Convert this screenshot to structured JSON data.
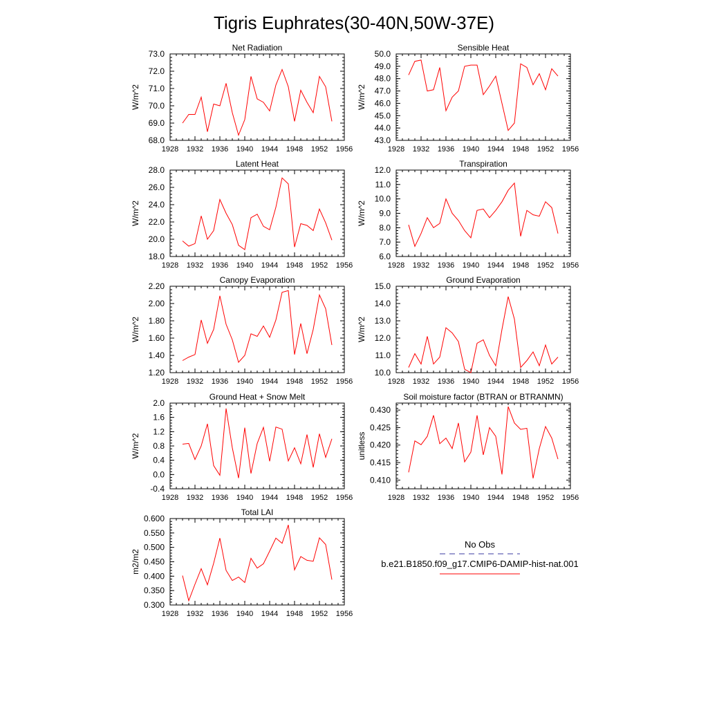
{
  "title": "Tigris Euphrates(30-40N,50W-37E)",
  "colors": {
    "series": "#ff0000",
    "obs": "#3a3aa0",
    "axis": "#000000"
  },
  "legend": {
    "obs_label": "No Obs",
    "model_label": "b.e21.B1850.f09_g17.CMIP6-DAMIP-hist-nat.001"
  },
  "chart_data": [
    {
      "type": "line",
      "title": "Net Radiation",
      "ylabel": "W/m^2",
      "xlim": [
        1928,
        1956
      ],
      "xticks": [
        1928,
        1932,
        1936,
        1940,
        1944,
        1948,
        1952,
        1956
      ],
      "ylim": [
        68.0,
        73.0
      ],
      "yticks": [
        68,
        69,
        70,
        71,
        72,
        73
      ],
      "ydecimals": 1,
      "x": [
        1930,
        1931,
        1932,
        1933,
        1934,
        1935,
        1936,
        1937,
        1938,
        1939,
        1940,
        1941,
        1942,
        1943,
        1944,
        1945,
        1946,
        1947,
        1948,
        1949,
        1950,
        1951,
        1952,
        1953,
        1954
      ],
      "series": [
        {
          "name": "b.e21.B1850.f09_g17.CMIP6-DAMIP-hist-nat.001",
          "values": [
            69.0,
            69.5,
            69.5,
            70.5,
            68.5,
            70.1,
            70.0,
            71.3,
            69.6,
            68.3,
            69.2,
            71.7,
            70.4,
            70.2,
            69.7,
            71.2,
            72.1,
            71.1,
            69.1,
            70.9,
            70.2,
            69.6,
            71.7,
            71.1,
            69.1
          ]
        }
      ]
    },
    {
      "type": "line",
      "title": "Sensible Heat",
      "ylabel": "W/m^2",
      "xlim": [
        1928,
        1956
      ],
      "xticks": [
        1928,
        1932,
        1936,
        1940,
        1944,
        1948,
        1952,
        1956
      ],
      "ylim": [
        43.0,
        50.0
      ],
      "yticks": [
        43,
        44,
        45,
        46,
        47,
        48,
        49,
        50
      ],
      "ydecimals": 1,
      "x": [
        1930,
        1931,
        1932,
        1933,
        1934,
        1935,
        1936,
        1937,
        1938,
        1939,
        1940,
        1941,
        1942,
        1943,
        1944,
        1945,
        1946,
        1947,
        1948,
        1949,
        1950,
        1951,
        1952,
        1953,
        1954
      ],
      "series": [
        {
          "name": "b.e21.B1850.f09_g17.CMIP6-DAMIP-hist-nat.001",
          "values": [
            48.3,
            49.4,
            49.5,
            47.0,
            47.1,
            48.9,
            45.4,
            46.5,
            47.0,
            49.0,
            49.1,
            49.1,
            46.7,
            47.4,
            48.2,
            46.0,
            43.8,
            44.4,
            49.2,
            48.9,
            47.5,
            48.4,
            47.1,
            48.8,
            48.2
          ]
        }
      ]
    },
    {
      "type": "line",
      "title": "Latent Heat",
      "ylabel": "W/m^2",
      "xlim": [
        1928,
        1956
      ],
      "xticks": [
        1928,
        1932,
        1936,
        1940,
        1944,
        1948,
        1952,
        1956
      ],
      "ylim": [
        18.0,
        28.0
      ],
      "yticks": [
        18,
        20,
        22,
        24,
        26,
        28
      ],
      "ydecimals": 1,
      "x": [
        1930,
        1931,
        1932,
        1933,
        1934,
        1935,
        1936,
        1937,
        1938,
        1939,
        1940,
        1941,
        1942,
        1943,
        1944,
        1945,
        1946,
        1947,
        1948,
        1949,
        1950,
        1951,
        1952,
        1953,
        1954
      ],
      "series": [
        {
          "name": "b.e21.B1850.f09_g17.CMIP6-DAMIP-hist-nat.001",
          "values": [
            19.8,
            19.2,
            19.5,
            22.7,
            20.0,
            21.0,
            24.6,
            23.0,
            21.7,
            19.3,
            18.8,
            22.5,
            22.9,
            21.5,
            21.1,
            23.7,
            27.1,
            26.4,
            19.1,
            21.8,
            21.6,
            21.0,
            23.5,
            21.9,
            19.9
          ]
        }
      ]
    },
    {
      "type": "line",
      "title": "Transpiration",
      "ylabel": "W/m^2",
      "xlim": [
        1928,
        1956
      ],
      "xticks": [
        1928,
        1932,
        1936,
        1940,
        1944,
        1948,
        1952,
        1956
      ],
      "ylim": [
        6.0,
        12.0
      ],
      "yticks": [
        6,
        7,
        8,
        9,
        10,
        11,
        12
      ],
      "ydecimals": 1,
      "x": [
        1930,
        1931,
        1932,
        1933,
        1934,
        1935,
        1936,
        1937,
        1938,
        1939,
        1940,
        1941,
        1942,
        1943,
        1944,
        1945,
        1946,
        1947,
        1948,
        1949,
        1950,
        1951,
        1952,
        1953,
        1954
      ],
      "series": [
        {
          "name": "b.e21.B1850.f09_g17.CMIP6-DAMIP-hist-nat.001",
          "values": [
            8.2,
            6.7,
            7.6,
            8.7,
            8.0,
            8.3,
            10.0,
            9.0,
            8.5,
            7.8,
            7.3,
            9.2,
            9.3,
            8.7,
            9.2,
            9.8,
            10.6,
            11.1,
            7.4,
            9.2,
            8.9,
            8.8,
            9.8,
            9.4,
            7.6
          ]
        }
      ]
    },
    {
      "type": "line",
      "title": "Canopy Evaporation",
      "ylabel": "W/m^2",
      "xlim": [
        1928,
        1956
      ],
      "xticks": [
        1928,
        1932,
        1936,
        1940,
        1944,
        1948,
        1952,
        1956
      ],
      "ylim": [
        1.2,
        2.2
      ],
      "yticks": [
        1.2,
        1.4,
        1.6,
        1.8,
        2.0,
        2.2
      ],
      "ydecimals": 2,
      "x": [
        1930,
        1931,
        1932,
        1933,
        1934,
        1935,
        1936,
        1937,
        1938,
        1939,
        1940,
        1941,
        1942,
        1943,
        1944,
        1945,
        1946,
        1947,
        1948,
        1949,
        1950,
        1951,
        1952,
        1953,
        1954
      ],
      "series": [
        {
          "name": "b.e21.B1850.f09_g17.CMIP6-DAMIP-hist-nat.001",
          "values": [
            1.34,
            1.38,
            1.41,
            1.81,
            1.54,
            1.7,
            2.09,
            1.76,
            1.58,
            1.32,
            1.4,
            1.65,
            1.62,
            1.74,
            1.61,
            1.81,
            2.13,
            2.15,
            1.41,
            1.77,
            1.42,
            1.7,
            2.1,
            1.94,
            1.52
          ]
        }
      ]
    },
    {
      "type": "line",
      "title": "Ground Evaporation",
      "ylabel": "W/m^2",
      "xlim": [
        1928,
        1956
      ],
      "xticks": [
        1928,
        1932,
        1936,
        1940,
        1944,
        1948,
        1952,
        1956
      ],
      "ylim": [
        10.0,
        15.0
      ],
      "yticks": [
        10,
        11,
        12,
        13,
        14,
        15
      ],
      "ydecimals": 1,
      "x": [
        1930,
        1931,
        1932,
        1933,
        1934,
        1935,
        1936,
        1937,
        1938,
        1939,
        1940,
        1941,
        1942,
        1943,
        1944,
        1945,
        1946,
        1947,
        1948,
        1949,
        1950,
        1951,
        1952,
        1953,
        1954
      ],
      "series": [
        {
          "name": "b.e21.B1850.f09_g17.CMIP6-DAMIP-hist-nat.001",
          "values": [
            10.3,
            11.1,
            10.5,
            12.1,
            10.5,
            10.9,
            12.6,
            12.3,
            11.8,
            10.2,
            10.0,
            11.7,
            11.9,
            11.0,
            10.4,
            12.5,
            14.4,
            13.1,
            10.3,
            10.7,
            11.2,
            10.4,
            11.6,
            10.5,
            10.9
          ]
        }
      ]
    },
    {
      "type": "line",
      "title": "Ground Heat + Snow Melt",
      "ylabel": "W/m^2",
      "xlim": [
        1928,
        1956
      ],
      "xticks": [
        1928,
        1932,
        1936,
        1940,
        1944,
        1948,
        1952,
        1956
      ],
      "ylim": [
        -0.4,
        2.0
      ],
      "yticks": [
        -0.4,
        0.0,
        0.4,
        0.8,
        1.2,
        1.6,
        2.0
      ],
      "ydecimals": 1,
      "x": [
        1930,
        1931,
        1932,
        1933,
        1934,
        1935,
        1936,
        1937,
        1938,
        1939,
        1940,
        1941,
        1942,
        1943,
        1944,
        1945,
        1946,
        1947,
        1948,
        1949,
        1950,
        1951,
        1952,
        1953,
        1954
      ],
      "series": [
        {
          "name": "b.e21.B1850.f09_g17.CMIP6-DAMIP-hist-nat.001",
          "values": [
            0.85,
            0.87,
            0.42,
            0.8,
            1.42,
            0.25,
            -0.02,
            1.85,
            0.75,
            -0.1,
            1.31,
            0.03,
            0.87,
            1.32,
            0.37,
            1.33,
            1.27,
            0.38,
            0.75,
            0.3,
            1.12,
            0.2,
            1.14,
            0.48,
            1.0
          ]
        }
      ]
    },
    {
      "type": "line",
      "title": "Soil moisture factor (BTRAN or BTRANMN)",
      "ylabel": "unitless",
      "xlim": [
        1928,
        1956
      ],
      "xticks": [
        1928,
        1932,
        1936,
        1940,
        1944,
        1948,
        1952,
        1956
      ],
      "ylim": [
        0.4075,
        0.432
      ],
      "yticks": [
        0.41,
        0.415,
        0.42,
        0.425,
        0.43
      ],
      "ydecimals": 3,
      "x": [
        1930,
        1931,
        1932,
        1933,
        1934,
        1935,
        1936,
        1937,
        1938,
        1939,
        1940,
        1941,
        1942,
        1943,
        1944,
        1945,
        1946,
        1947,
        1948,
        1949,
        1950,
        1951,
        1952,
        1953,
        1954
      ],
      "series": [
        {
          "name": "b.e21.B1850.f09_g17.CMIP6-DAMIP-hist-nat.001",
          "values": [
            0.4122,
            0.4212,
            0.4201,
            0.4225,
            0.4285,
            0.4204,
            0.422,
            0.419,
            0.4263,
            0.4152,
            0.418,
            0.4285,
            0.4172,
            0.425,
            0.4225,
            0.4116,
            0.431,
            0.4263,
            0.4245,
            0.4248,
            0.4105,
            0.419,
            0.4253,
            0.422,
            0.416
          ]
        }
      ]
    },
    {
      "type": "line",
      "title": "Total LAI",
      "ylabel": "m2/m2",
      "xlim": [
        1928,
        1956
      ],
      "xticks": [
        1928,
        1932,
        1936,
        1940,
        1944,
        1948,
        1952,
        1956
      ],
      "ylim": [
        0.3,
        0.6
      ],
      "yticks": [
        0.3,
        0.35,
        0.4,
        0.45,
        0.5,
        0.55,
        0.6
      ],
      "ydecimals": 3,
      "x": [
        1930,
        1931,
        1932,
        1933,
        1934,
        1935,
        1936,
        1937,
        1938,
        1939,
        1940,
        1941,
        1942,
        1943,
        1944,
        1945,
        1946,
        1947,
        1948,
        1949,
        1950,
        1951,
        1952,
        1953,
        1954
      ],
      "series": [
        {
          "name": "b.e21.B1850.f09_g17.CMIP6-DAMIP-hist-nat.001",
          "values": [
            0.402,
            0.315,
            0.372,
            0.426,
            0.37,
            0.445,
            0.532,
            0.42,
            0.385,
            0.397,
            0.378,
            0.462,
            0.428,
            0.443,
            0.487,
            0.532,
            0.514,
            0.578,
            0.422,
            0.468,
            0.455,
            0.452,
            0.533,
            0.51,
            0.388
          ]
        }
      ]
    }
  ]
}
